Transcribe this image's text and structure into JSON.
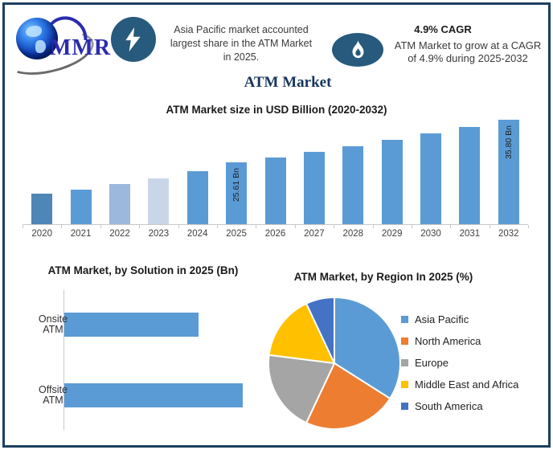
{
  "colors": {
    "frame_border": "#1d405f",
    "icon_navy": "#275a7d",
    "title_navy": "#17365d",
    "logo_blue": "#2b2bb0",
    "primary_blue": "#5b9bd5",
    "axis_gray": "#c9c9c9"
  },
  "header": {
    "logo": {
      "text": "MMR"
    },
    "asia_note": {
      "lines": [
        "Asia Pacific market accounted",
        "largest share in the ATM Market",
        "in 2025."
      ]
    },
    "cagr_note": {
      "title": "4.9% CAGR",
      "lines": [
        "ATM Market to grow at a CAGR",
        "of 4.9% during 2025-2032"
      ]
    }
  },
  "page_title": "ATM Market",
  "chart_data": [
    {
      "id": "market_size",
      "type": "bar",
      "title": "ATM Market size in USD Billion (2020-2032)",
      "categories": [
        "2020",
        "2021",
        "2022",
        "2023",
        "2024",
        "2025",
        "2026",
        "2027",
        "2028",
        "2029",
        "2030",
        "2031",
        "2032"
      ],
      "values": [
        18.2,
        19.3,
        20.5,
        21.9,
        23.6,
        25.61,
        26.9,
        28.2,
        29.6,
        31.0,
        32.5,
        34.1,
        35.8
      ],
      "unit": "USD Billion",
      "ylim": [
        11,
        36
      ],
      "grid": false,
      "legend_position": "none",
      "bar_colors": [
        "#4e86b8",
        "#5b9bd5",
        "#9cb8dd",
        "#c9d6ea",
        "#5b9bd5",
        "#5b9bd5",
        "#5b9bd5",
        "#5b9bd5",
        "#5b9bd5",
        "#5b9bd5",
        "#5b9bd5",
        "#5b9bd5",
        "#5b9bd5"
      ],
      "data_labels": [
        {
          "category": "2025",
          "text": "25.61 Bn"
        },
        {
          "category": "2032",
          "text": "35.80 Bn"
        }
      ]
    },
    {
      "id": "by_solution",
      "type": "bar",
      "orientation": "horizontal",
      "title": "ATM Market, by Solution in 2025 (Bn)",
      "categories": [
        "Onsite ATM",
        "Offsite ATM"
      ],
      "values": [
        11.0,
        14.6
      ],
      "unit": "USD Billion",
      "xlim": [
        0,
        15
      ],
      "grid": false,
      "color": "#5b9bd5"
    },
    {
      "id": "by_region",
      "type": "pie",
      "title": "ATM Market, by Region In 2025 (%)",
      "start_angle_deg": 0,
      "legend_position": "right",
      "slices": [
        {
          "label": "Asia Pacific",
          "value": 34,
          "color": "#5b9bd5"
        },
        {
          "label": "North America",
          "value": 23,
          "color": "#ed7d31"
        },
        {
          "label": "Europe",
          "value": 20,
          "color": "#a5a5a5"
        },
        {
          "label": "Middle East and Africa",
          "value": 16,
          "color": "#ffc000"
        },
        {
          "label": "South America",
          "value": 7,
          "color": "#4472c4"
        }
      ]
    }
  ]
}
